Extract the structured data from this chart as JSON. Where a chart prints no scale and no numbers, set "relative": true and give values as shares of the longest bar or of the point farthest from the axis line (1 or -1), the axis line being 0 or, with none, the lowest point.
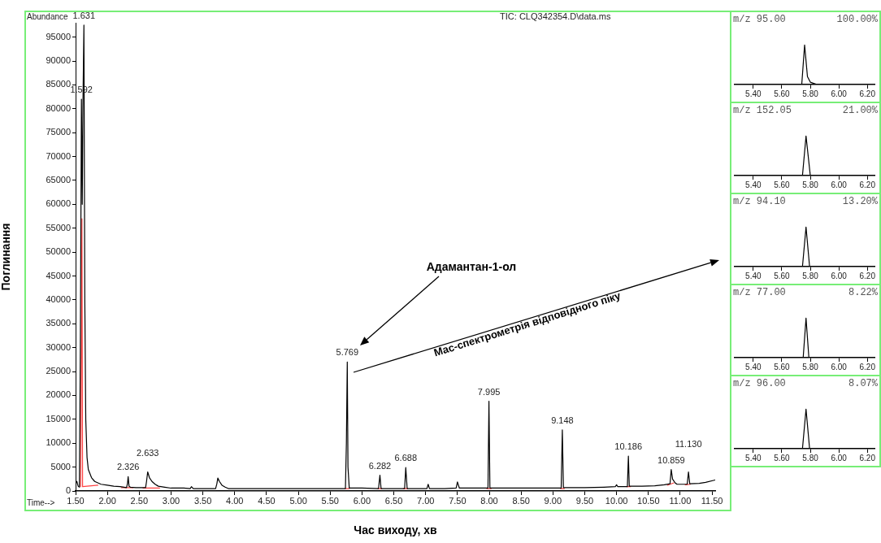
{
  "chart_data": [
    {
      "type": "line",
      "subtitle": "TIC: CLQ342354.D\\data.ms",
      "xlabel": "Час виходу, хв",
      "ylabel": "Поглинання",
      "annotations": [
        "Abundance",
        "Time-->",
        {
          "text": "1.631",
          "x": 1.631,
          "y": 97500
        },
        {
          "text": "1.592",
          "x": 1.592,
          "y": 82000
        },
        {
          "text": "2.326",
          "x": 2.326,
          "y": 3000
        },
        {
          "text": "2.633",
          "x": 2.633,
          "y": 4000
        },
        {
          "text": "5.769",
          "x": 5.769,
          "y": 27000
        },
        {
          "text": "6.282",
          "x": 6.282,
          "y": 3300
        },
        {
          "text": "6.688",
          "x": 6.688,
          "y": 4900
        },
        {
          "text": "7.995",
          "x": 7.995,
          "y": 18800
        },
        {
          "text": "9.148",
          "x": 9.148,
          "y": 12800
        },
        {
          "text": "10.186",
          "x": 10.186,
          "y": 7300
        },
        {
          "text": "10.859",
          "x": 10.859,
          "y": 4500
        },
        {
          "text": "11.130",
          "x": 11.13,
          "y": 4000
        },
        "Адамантан-1-ол",
        "Мас-спектрометрія відповідного піку"
      ],
      "series": [
        {
          "color": "#000000",
          "x": [
            1.5,
            1.52,
            1.54,
            1.56,
            1.575,
            1.592,
            1.605,
            1.615,
            1.631,
            1.645,
            1.66,
            1.68,
            1.7,
            1.75,
            1.8,
            1.9,
            2.0,
            2.1,
            2.2,
            2.3,
            2.315,
            2.326,
            2.34,
            2.36,
            2.45,
            2.6,
            2.615,
            2.633,
            2.66,
            2.7,
            2.75,
            2.8,
            2.9,
            3.0,
            3.2,
            3.3,
            3.32,
            3.35,
            3.5,
            3.7,
            3.72,
            3.735,
            3.76,
            3.8,
            3.85,
            3.9,
            4.2,
            4.6,
            5.0,
            5.4,
            5.74,
            5.755,
            5.769,
            5.78,
            5.8,
            6.0,
            6.26,
            6.282,
            6.3,
            6.5,
            6.67,
            6.688,
            6.71,
            6.9,
            7.02,
            7.04,
            7.06,
            7.3,
            7.48,
            7.5,
            7.53,
            7.7,
            7.98,
            7.995,
            8.01,
            8.5,
            9.0,
            9.13,
            9.148,
            9.165,
            9.5,
            9.8,
            9.98,
            10.0,
            10.02,
            10.17,
            10.186,
            10.2,
            10.4,
            10.6,
            10.75,
            10.84,
            10.859,
            10.88,
            10.92,
            10.95,
            11.05,
            11.11,
            11.13,
            11.15,
            11.3,
            11.4,
            11.55
          ],
          "values": [
            1500,
            2000,
            1000,
            800,
            30000,
            82000,
            60000,
            80000,
            97500,
            40000,
            15000,
            7000,
            4500,
            2800,
            2000,
            1400,
            1200,
            1000,
            900,
            700,
            1500,
            3000,
            1000,
            800,
            700,
            700,
            2000,
            4000,
            2800,
            2000,
            1400,
            1000,
            800,
            600,
            600,
            500,
            900,
            500,
            500,
            500,
            1500,
            2700,
            2000,
            1200,
            800,
            500,
            500,
            500,
            500,
            500,
            500,
            10000,
            27000,
            5000,
            600,
            600,
            500,
            3300,
            500,
            500,
            500,
            4900,
            500,
            500,
            500,
            1400,
            500,
            500,
            600,
            1900,
            600,
            600,
            600,
            18800,
            600,
            600,
            600,
            600,
            12800,
            700,
            700,
            800,
            900,
            1300,
            900,
            900,
            7300,
            1000,
            1000,
            1100,
            1300,
            1500,
            4500,
            2500,
            1700,
            1400,
            1400,
            1400,
            4000,
            1500,
            1600,
            1800,
            2300
          ]
        },
        {
          "color": "#ff4040",
          "x": [
            1.58,
            1.6,
            1.61,
            1.85,
            1.9,
            2.22,
            2.4,
            2.45,
            2.56,
            2.82,
            2.9,
            5.74,
            5.8,
            5.9,
            6.25,
            6.31,
            6.4,
            6.65,
            6.72,
            6.8,
            7.96,
            8.03,
            8.1,
            9.12,
            9.18,
            9.3,
            10.16,
            10.22,
            10.3,
            10.8,
            10.9,
            11.0,
            11.08,
            11.16
          ],
          "values": [
            900,
            57000,
            900,
            1200,
            null,
            700,
            700,
            null,
            600,
            600,
            null,
            500,
            500,
            null,
            500,
            500,
            null,
            500,
            500,
            null,
            500,
            500,
            null,
            500,
            500,
            null,
            900,
            900,
            null,
            1200,
            1700,
            null,
            1300,
            1400
          ]
        }
      ],
      "xlim": [
        1.5,
        11.55
      ],
      "xticks": [
        {
          "value": 1.5,
          "label": "1.50"
        },
        {
          "value": 2,
          "label": "2.00"
        },
        {
          "value": 2.5,
          "label": "2.50"
        },
        {
          "value": 3,
          "label": "3.00"
        },
        {
          "value": 3.5,
          "label": "3.50"
        },
        {
          "value": 4,
          "label": "4.00"
        },
        {
          "value": 4.5,
          "label": "4.50"
        },
        {
          "value": 5,
          "label": "5.00"
        },
        {
          "value": 5.5,
          "label": "5.50"
        },
        {
          "value": 6,
          "label": "6.00"
        },
        {
          "value": 6.5,
          "label": "6.50"
        },
        {
          "value": 7,
          "label": "7.00"
        },
        {
          "value": 7.5,
          "label": "7.50"
        },
        {
          "value": 8,
          "label": "8.00"
        },
        {
          "value": 8.5,
          "label": "8.50"
        },
        {
          "value": 9,
          "label": "9.00"
        },
        {
          "value": 9.5,
          "label": "9.50"
        },
        {
          "value": 10,
          "label": "10.00"
        },
        {
          "value": 10.5,
          "label": "10.50"
        },
        {
          "value": 11,
          "label": "11.00"
        },
        {
          "value": 11.5,
          "label": "11.50"
        }
      ],
      "ylim": [
        0,
        98000
      ],
      "yticks": [
        0,
        5000,
        10000,
        15000,
        20000,
        25000,
        30000,
        35000,
        40000,
        45000,
        50000,
        55000,
        60000,
        65000,
        70000,
        75000,
        80000,
        85000,
        90000,
        95000
      ],
      "grid": false,
      "legend": false,
      "marker": "none"
    },
    {
      "type": "line",
      "title": "m/z 95.00",
      "subtitle": "100.00%",
      "relative": true,
      "series": [
        {
          "color": "#000000",
          "x": [
            5.27,
            5.74,
            5.76,
            5.78,
            5.8,
            5.84,
            5.9,
            6.25
          ],
          "values": [
            0,
            0,
            1,
            0.2,
            0.06,
            0.01,
            0,
            0
          ]
        }
      ],
      "xlim": [
        5.27,
        6.25
      ],
      "xticks": [
        {
          "value": 5.4,
          "label": "5.40"
        },
        {
          "value": 5.6,
          "label": "5.60"
        },
        {
          "value": 5.8,
          "label": "5.80"
        },
        {
          "value": 6.0,
          "label": "6.00"
        },
        {
          "value": 6.2,
          "label": "6.20"
        }
      ],
      "grid": false,
      "legend": false,
      "marker": "none"
    },
    {
      "type": "line",
      "title": "m/z 152.05",
      "subtitle": "21.00%",
      "relative": true,
      "series": [
        {
          "color": "#000000",
          "x": [
            5.27,
            5.745,
            5.77,
            5.8,
            6.25
          ],
          "values": [
            0,
            0,
            1,
            0,
            0
          ]
        }
      ],
      "xlim": [
        5.27,
        6.25
      ],
      "xticks": [
        {
          "value": 5.4,
          "label": "5.40"
        },
        {
          "value": 5.6,
          "label": "5.60"
        },
        {
          "value": 5.8,
          "label": "5.80"
        },
        {
          "value": 6.0,
          "label": "6.00"
        },
        {
          "value": 6.2,
          "label": "6.20"
        }
      ],
      "grid": false,
      "legend": false,
      "marker": "none"
    },
    {
      "type": "line",
      "title": "m/z 94.10",
      "subtitle": "13.20%",
      "relative": true,
      "series": [
        {
          "color": "#000000",
          "x": [
            5.27,
            5.745,
            5.77,
            5.795,
            6.25
          ],
          "values": [
            0,
            0,
            1,
            0,
            0
          ]
        }
      ],
      "xlim": [
        5.27,
        6.25
      ],
      "xticks": [
        {
          "value": 5.4,
          "label": "5.40"
        },
        {
          "value": 5.6,
          "label": "5.60"
        },
        {
          "value": 5.8,
          "label": "5.80"
        },
        {
          "value": 6.0,
          "label": "6.00"
        },
        {
          "value": 6.2,
          "label": "6.20"
        }
      ],
      "grid": false,
      "legend": false,
      "marker": "none"
    },
    {
      "type": "line",
      "title": "m/z 77.00",
      "subtitle": "8.22%",
      "relative": true,
      "series": [
        {
          "color": "#000000",
          "x": [
            5.27,
            5.75,
            5.77,
            5.79,
            6.25
          ],
          "values": [
            0,
            0,
            1,
            0,
            0
          ]
        }
      ],
      "xlim": [
        5.27,
        6.25
      ],
      "xticks": [
        {
          "value": 5.4,
          "label": "5.40"
        },
        {
          "value": 5.6,
          "label": "5.60"
        },
        {
          "value": 5.8,
          "label": "5.80"
        },
        {
          "value": 6.0,
          "label": "6.00"
        },
        {
          "value": 6.2,
          "label": "6.20"
        }
      ],
      "grid": false,
      "legend": false,
      "marker": "none"
    },
    {
      "type": "line",
      "title": "m/z 96.00",
      "subtitle": "8.07%",
      "relative": true,
      "series": [
        {
          "color": "#000000",
          "x": [
            5.27,
            5.745,
            5.77,
            5.795,
            6.25
          ],
          "values": [
            0,
            0,
            1,
            0,
            0
          ]
        }
      ],
      "xlim": [
        5.27,
        6.25
      ],
      "xticks": [
        {
          "value": 5.4,
          "label": "5.40"
        },
        {
          "value": 5.6,
          "label": "5.60"
        },
        {
          "value": 5.8,
          "label": "5.80"
        },
        {
          "value": 6.0,
          "label": "6.00"
        },
        {
          "value": 6.2,
          "label": "6.20"
        }
      ],
      "grid": false,
      "legend": false,
      "marker": "none"
    }
  ]
}
